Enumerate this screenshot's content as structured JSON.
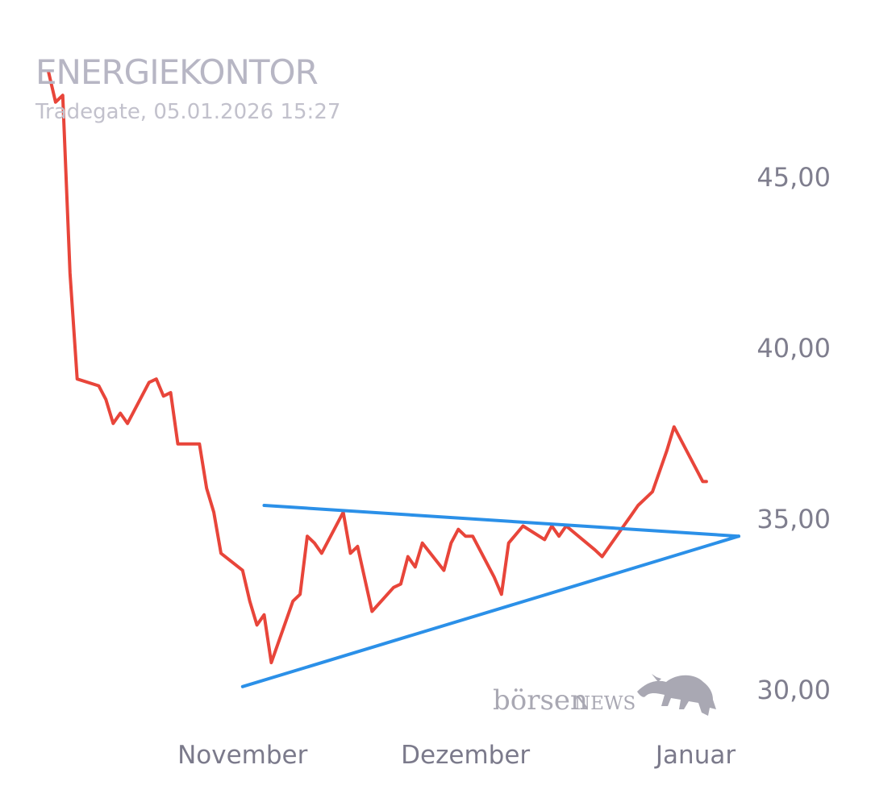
{
  "header": {
    "title": "ENERGIEKONTOR",
    "subtitle": "Tradegate, 05.01.2026 15:27"
  },
  "logo": {
    "text_main": "börsen",
    "text_news": "NEWS",
    "icon": "bull-icon"
  },
  "colors": {
    "price_line": "#e8453a",
    "trend_lines": "#2b90e8"
  },
  "chart_data": {
    "type": "line",
    "title": "ENERGIEKONTOR",
    "subtitle": "Tradegate, 05.01.2026 15:27",
    "x_unit": "trading day index (0 = early October 2025, ~30 = start of November, ~60 = start of December, ~90 = start of January)",
    "xlim": [
      0,
      96
    ],
    "ylim": [
      29.0,
      48.5
    ],
    "y_axis_side": "right",
    "grid": false,
    "legend": "none",
    "x_ticks": [
      {
        "x": 27,
        "label": "November"
      },
      {
        "x": 58,
        "label": "Dezember"
      },
      {
        "x": 90,
        "label": "Januar"
      }
    ],
    "y_ticks": [
      {
        "value": 45,
        "label": "45,00"
      },
      {
        "value": 40,
        "label": "40,00"
      },
      {
        "value": 35,
        "label": "35,00"
      },
      {
        "value": 30,
        "label": "30,00"
      }
    ],
    "series": [
      {
        "kind": "price",
        "color": "#e8453a",
        "points": [
          [
            0.0,
            48.1
          ],
          [
            1.0,
            47.2
          ],
          [
            2.0,
            47.4
          ],
          [
            3.0,
            42.2
          ],
          [
            4.0,
            39.1
          ],
          [
            7.0,
            38.9
          ],
          [
            8.0,
            38.5
          ],
          [
            9.0,
            37.8
          ],
          [
            10.0,
            38.1
          ],
          [
            11.0,
            37.8
          ],
          [
            14.0,
            39.0
          ],
          [
            15.0,
            39.1
          ],
          [
            16.0,
            38.6
          ],
          [
            17.0,
            38.7
          ],
          [
            18.0,
            37.2
          ],
          [
            21.0,
            37.2
          ],
          [
            22.0,
            35.9
          ],
          [
            23.0,
            35.2
          ],
          [
            24.0,
            34.0
          ],
          [
            27.0,
            33.5
          ],
          [
            28.0,
            32.6
          ],
          [
            29.0,
            31.9
          ],
          [
            30.0,
            32.2
          ],
          [
            31.0,
            30.8
          ],
          [
            34.0,
            32.6
          ],
          [
            35.0,
            32.8
          ],
          [
            36.0,
            34.5
          ],
          [
            37.0,
            34.3
          ],
          [
            38.0,
            34.0
          ],
          [
            41.0,
            35.2
          ],
          [
            42.0,
            34.0
          ],
          [
            43.0,
            34.2
          ],
          [
            45.0,
            32.3
          ],
          [
            48.0,
            33.0
          ],
          [
            49.0,
            33.1
          ],
          [
            50.0,
            33.9
          ],
          [
            51.0,
            33.6
          ],
          [
            52.0,
            34.3
          ],
          [
            55.0,
            33.5
          ],
          [
            56.0,
            34.3
          ],
          [
            57.0,
            34.7
          ],
          [
            58.0,
            34.5
          ],
          [
            59.0,
            34.5
          ],
          [
            62.0,
            33.3
          ],
          [
            63.0,
            32.8
          ],
          [
            64.0,
            34.3
          ],
          [
            66.0,
            34.8
          ],
          [
            69.0,
            34.4
          ],
          [
            70.0,
            34.8
          ],
          [
            71.0,
            34.5
          ],
          [
            72.0,
            34.8
          ],
          [
            76.0,
            34.1
          ],
          [
            77.0,
            33.9
          ],
          [
            80.0,
            34.8
          ],
          [
            81.0,
            35.1
          ],
          [
            82.0,
            35.4
          ],
          [
            83.0,
            35.6
          ],
          [
            84.0,
            35.8
          ],
          [
            86.0,
            37.0
          ],
          [
            87.0,
            37.7
          ],
          [
            88.0,
            37.3
          ],
          [
            90.0,
            36.5
          ],
          [
            91.0,
            36.1
          ],
          [
            91.5,
            36.1
          ]
        ]
      },
      {
        "kind": "upper_trendline",
        "color": "#2b90e8",
        "points": [
          [
            30.0,
            35.4
          ],
          [
            96.0,
            34.5
          ]
        ]
      },
      {
        "kind": "lower_trendline",
        "color": "#2b90e8",
        "points": [
          [
            27.0,
            30.1
          ],
          [
            96.0,
            34.5
          ]
        ]
      }
    ]
  }
}
